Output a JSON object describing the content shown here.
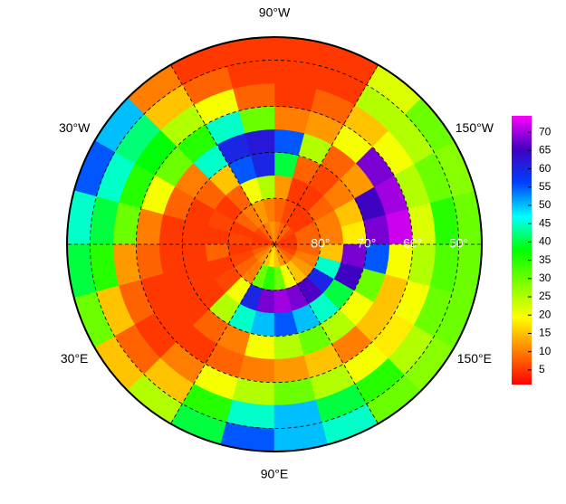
{
  "chart_data": {
    "type": "polar_heatmap",
    "rlim": [
      90,
      45
    ],
    "lat_edges": [
      90,
      85,
      80,
      75,
      70,
      65,
      60,
      55,
      50,
      45
    ],
    "lon_edges": [
      -180,
      -165,
      -150,
      -135,
      -120,
      -105,
      -90,
      -75,
      -60,
      -45,
      -30,
      -15,
      0,
      15,
      30,
      45,
      60,
      75,
      90,
      105,
      120,
      135,
      150,
      165,
      180
    ],
    "values": [
      [
        5,
        8,
        10,
        18,
        68,
        72,
        22,
        35,
        30
      ],
      [
        5,
        8,
        10,
        15,
        65,
        70,
        25,
        30,
        28
      ],
      [
        6,
        5,
        8,
        10,
        12,
        68,
        20,
        25,
        30
      ],
      [
        8,
        5,
        5,
        6,
        8,
        20,
        15,
        25,
        22
      ],
      [
        8,
        6,
        5,
        8,
        25,
        12,
        8,
        5,
        5
      ],
      [
        10,
        8,
        12,
        40,
        55,
        10,
        5,
        5,
        5
      ],
      [
        12,
        10,
        25,
        60,
        62,
        30,
        8,
        5,
        5
      ],
      [
        10,
        12,
        20,
        55,
        60,
        45,
        20,
        8,
        5
      ],
      [
        8,
        10,
        8,
        15,
        45,
        35,
        25,
        15,
        10
      ],
      [
        6,
        8,
        5,
        8,
        10,
        30,
        38,
        42,
        50
      ],
      [
        5,
        5,
        6,
        5,
        8,
        20,
        35,
        45,
        55
      ],
      [
        5,
        6,
        5,
        5,
        5,
        10,
        30,
        40,
        45
      ],
      [
        6,
        5,
        8,
        5,
        5,
        8,
        12,
        35,
        40
      ],
      [
        8,
        6,
        5,
        5,
        5,
        5,
        8,
        15,
        30
      ],
      [
        10,
        8,
        6,
        5,
        5,
        5,
        5,
        8,
        15
      ],
      [
        12,
        10,
        20,
        25,
        8,
        5,
        10,
        15,
        25
      ],
      [
        15,
        30,
        60,
        45,
        10,
        8,
        20,
        35,
        40
      ],
      [
        18,
        35,
        68,
        50,
        20,
        10,
        25,
        45,
        55
      ],
      [
        15,
        30,
        70,
        55,
        25,
        12,
        30,
        50,
        50
      ],
      [
        12,
        20,
        68,
        50,
        30,
        15,
        25,
        40,
        45
      ],
      [
        10,
        15,
        66,
        45,
        25,
        10,
        20,
        35,
        30
      ],
      [
        8,
        12,
        60,
        40,
        20,
        15,
        18,
        25,
        28
      ],
      [
        6,
        10,
        45,
        65,
        30,
        15,
        20,
        30,
        30
      ],
      [
        5,
        8,
        15,
        68,
        55,
        20,
        25,
        32,
        30
      ]
    ],
    "lon_labels": [
      {
        "value": -90,
        "label": "90°W"
      },
      {
        "value": -30,
        "label": "30°W"
      },
      {
        "value": -150,
        "label": "150°W"
      },
      {
        "value": 30,
        "label": "30°E"
      },
      {
        "value": 150,
        "label": "150°E"
      },
      {
        "value": 90,
        "label": "90°E"
      }
    ],
    "lat_labels": [
      {
        "value": 80,
        "label": "80°"
      },
      {
        "value": 70,
        "label": "70°"
      },
      {
        "value": 60,
        "label": "60°"
      },
      {
        "value": 50,
        "label": "50°"
      }
    ],
    "meridians": [
      -180,
      -120,
      -60,
      0,
      60,
      120
    ],
    "clim": [
      1,
      74.5
    ],
    "cticks": [
      5,
      10,
      15,
      20,
      25,
      30,
      35,
      40,
      45,
      50,
      55,
      60,
      65,
      70
    ],
    "colors": [
      "#ff0000",
      "#ff8000",
      "#ffff00",
      "#80ff00",
      "#00ff00",
      "#00ffff",
      "#0040ff",
      "#4000c0",
      "#ff00ff"
    ]
  }
}
